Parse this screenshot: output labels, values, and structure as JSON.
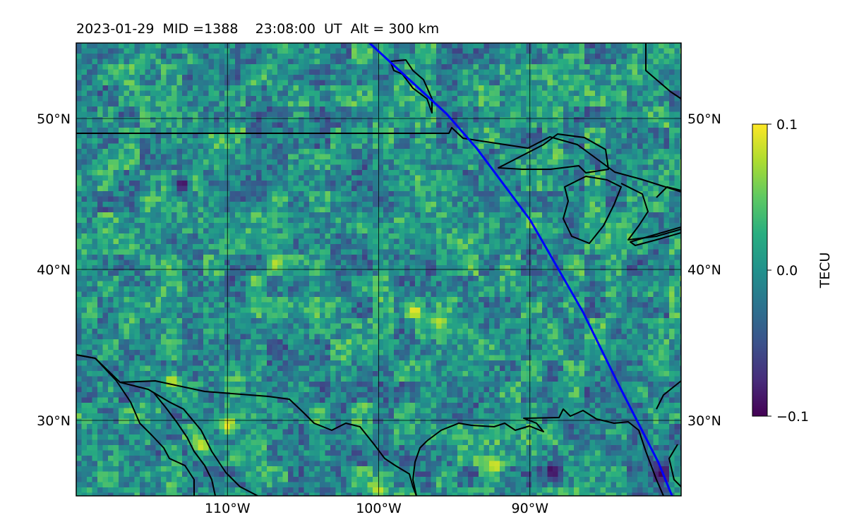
{
  "chart_data": {
    "type": "heatmap",
    "title": "2023-01-29  MID =1388    23:08:00  UT  Alt = 300 km",
    "projection": "equirectangular",
    "lon_range": [
      -120,
      -80
    ],
    "lat_range": [
      25,
      55
    ],
    "gridlines": true,
    "x_ticks": [
      {
        "value": -110,
        "label": "110°W"
      },
      {
        "value": -100,
        "label": "100°W"
      },
      {
        "value": -90,
        "label": "90°W"
      }
    ],
    "y_ticks": [
      {
        "value": 30,
        "label": "30°N"
      },
      {
        "value": 40,
        "label": "40°N"
      },
      {
        "value": 50,
        "label": "50°N"
      }
    ],
    "colorbar": {
      "label": "TECU",
      "colormap": "viridis",
      "range": [
        -0.1,
        0.1
      ],
      "ticks": [
        {
          "value": 0.1,
          "label": "0.1"
        },
        {
          "value": 0.0,
          "label": "0.0"
        },
        {
          "value": -0.1,
          "label": "−0.1"
        }
      ]
    },
    "field": {
      "description_units": "TECU",
      "mean": 0.0,
      "hotspots": [
        {
          "lon": -97.6,
          "lat": 37.2,
          "value": 0.1
        },
        {
          "lon": -110.0,
          "lat": 29.7,
          "value": 0.1
        },
        {
          "lon": -111.7,
          "lat": 28.3,
          "value": 0.09
        },
        {
          "lon": -113.7,
          "lat": 32.6,
          "value": 0.09
        },
        {
          "lon": -92.3,
          "lat": 27.0,
          "value": 0.09
        },
        {
          "lon": -100.0,
          "lat": 25.3,
          "value": 0.09
        },
        {
          "lon": -96.0,
          "lat": 36.5,
          "value": 0.08
        },
        {
          "lon": -106.8,
          "lat": 40.4,
          "value": 0.08
        },
        {
          "lon": -88.5,
          "lat": 26.6,
          "value": -0.1
        },
        {
          "lon": -81.3,
          "lat": 26.5,
          "value": -0.1
        },
        {
          "lon": -113.0,
          "lat": 45.6,
          "value": -0.1
        }
      ]
    },
    "overlays": [
      {
        "name": "satellite track",
        "color": "#0000ff",
        "lon": [
          -100.6,
          -95.5,
          -93.5,
          -90.0,
          -86.5,
          -84.2,
          -81.5,
          -80.6
        ],
        "lat": [
          55.0,
          50.3,
          48.0,
          43.3,
          37.2,
          32.5,
          27.2,
          25.0
        ]
      }
    ]
  }
}
